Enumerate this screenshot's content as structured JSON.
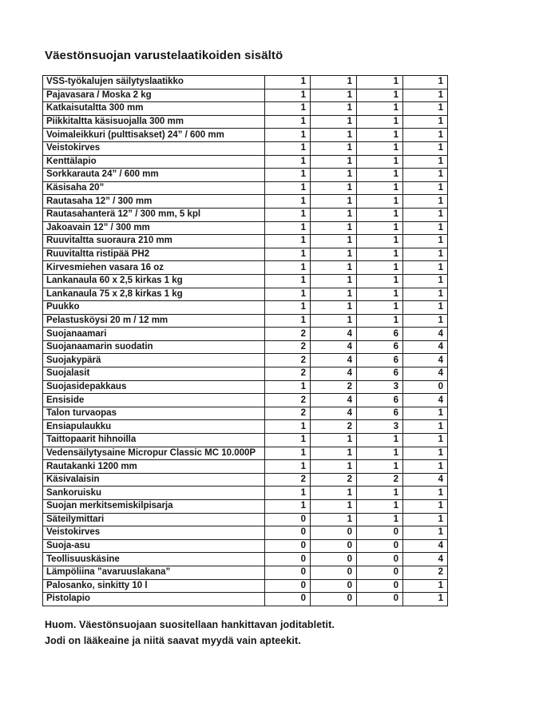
{
  "page": {
    "title": "Väestönsuojan varustelaatikoiden sisältö",
    "footer_lines": [
      "Huom. Väestönsuojaan suositellaan hankittavan joditabletit.",
      "Jodi on lääkeaine ja niitä saavat myydä vain apteekit."
    ]
  },
  "table": {
    "quantity_column_count": 4,
    "rows": [
      {
        "name": "VSS-työkalujen säilytyslaatikko",
        "quantities": [
          1,
          1,
          1,
          1
        ]
      },
      {
        "name": "Pajavasara / Moska 2 kg",
        "quantities": [
          1,
          1,
          1,
          1
        ]
      },
      {
        "name": "Katkaisutaltta 300 mm",
        "quantities": [
          1,
          1,
          1,
          1
        ]
      },
      {
        "name": "Piikkitaltta käsisuojalla 300 mm",
        "quantities": [
          1,
          1,
          1,
          1
        ]
      },
      {
        "name": "Voimaleikkuri (pulttisakset) 24” / 600 mm",
        "quantities": [
          1,
          1,
          1,
          1
        ]
      },
      {
        "name": "Veistokirves",
        "quantities": [
          1,
          1,
          1,
          1
        ]
      },
      {
        "name": "Kenttälapio",
        "quantities": [
          1,
          1,
          1,
          1
        ]
      },
      {
        "name": "Sorkkarauta 24” / 600 mm",
        "quantities": [
          1,
          1,
          1,
          1
        ]
      },
      {
        "name": "Käsisaha 20”",
        "quantities": [
          1,
          1,
          1,
          1
        ]
      },
      {
        "name": "Rautasaha 12” / 300 mm",
        "quantities": [
          1,
          1,
          1,
          1
        ]
      },
      {
        "name": "Rautasahanterä 12” / 300 mm, 5 kpl",
        "quantities": [
          1,
          1,
          1,
          1
        ]
      },
      {
        "name": "Jakoavain 12” / 300 mm",
        "quantities": [
          1,
          1,
          1,
          1
        ]
      },
      {
        "name": "Ruuvitaltta suoraura 210 mm",
        "quantities": [
          1,
          1,
          1,
          1
        ]
      },
      {
        "name": "Ruuvitaltta ristipää PH2",
        "quantities": [
          1,
          1,
          1,
          1
        ]
      },
      {
        "name": "Kirvesmiehen vasara 16 oz",
        "quantities": [
          1,
          1,
          1,
          1
        ]
      },
      {
        "name": "Lankanaula 60 x 2,5 kirkas 1 kg",
        "quantities": [
          1,
          1,
          1,
          1
        ]
      },
      {
        "name": "Lankanaula 75 x 2,8 kirkas 1 kg",
        "quantities": [
          1,
          1,
          1,
          1
        ]
      },
      {
        "name": "Puukko",
        "quantities": [
          1,
          1,
          1,
          1
        ]
      },
      {
        "name": "Pelastusköysi 20 m / 12 mm",
        "quantities": [
          1,
          1,
          1,
          1
        ]
      },
      {
        "name": "Suojanaamari",
        "quantities": [
          2,
          4,
          6,
          4
        ]
      },
      {
        "name": "Suojanaamarin suodatin",
        "quantities": [
          2,
          4,
          6,
          4
        ]
      },
      {
        "name": "Suojakypärä",
        "quantities": [
          2,
          4,
          6,
          4
        ]
      },
      {
        "name": "Suojalasit",
        "quantities": [
          2,
          4,
          6,
          4
        ]
      },
      {
        "name": "Suojasidepakkaus",
        "quantities": [
          1,
          2,
          3,
          0
        ]
      },
      {
        "name": "Ensiside",
        "quantities": [
          2,
          4,
          6,
          4
        ]
      },
      {
        "name": "Talon turvaopas",
        "quantities": [
          2,
          4,
          6,
          1
        ]
      },
      {
        "name": "Ensiapulaukku",
        "quantities": [
          1,
          2,
          3,
          1
        ]
      },
      {
        "name": "Taittopaarit hihnoilla",
        "quantities": [
          1,
          1,
          1,
          1
        ]
      },
      {
        "name": "Vedensäilytysaine Micropur Classic MC 10.000P",
        "quantities": [
          1,
          1,
          1,
          1
        ]
      },
      {
        "name": "Rautakanki 1200 mm",
        "quantities": [
          1,
          1,
          1,
          1
        ]
      },
      {
        "name": "Käsivalaisin",
        "quantities": [
          2,
          2,
          2,
          4
        ]
      },
      {
        "name": "Sankoruisku",
        "quantities": [
          1,
          1,
          1,
          1
        ]
      },
      {
        "name": "Suojan merkitsemiskilpisarja",
        "quantities": [
          1,
          1,
          1,
          1
        ]
      },
      {
        "name": "Säteilymittari",
        "quantities": [
          0,
          1,
          1,
          1
        ]
      },
      {
        "name": "Veistokirves",
        "quantities": [
          0,
          0,
          0,
          1
        ]
      },
      {
        "name": "Suoja-asu",
        "quantities": [
          0,
          0,
          0,
          4
        ]
      },
      {
        "name": "Teollisuuskäsine",
        "quantities": [
          0,
          0,
          0,
          4
        ]
      },
      {
        "name": "Lämpöliina ”avaruuslakana”",
        "quantities": [
          0,
          0,
          0,
          2
        ]
      },
      {
        "name": "Palosanko, sinkitty 10 l",
        "quantities": [
          0,
          0,
          0,
          1
        ]
      },
      {
        "name": "Pistolapio",
        "quantities": [
          0,
          0,
          0,
          1
        ]
      }
    ]
  }
}
